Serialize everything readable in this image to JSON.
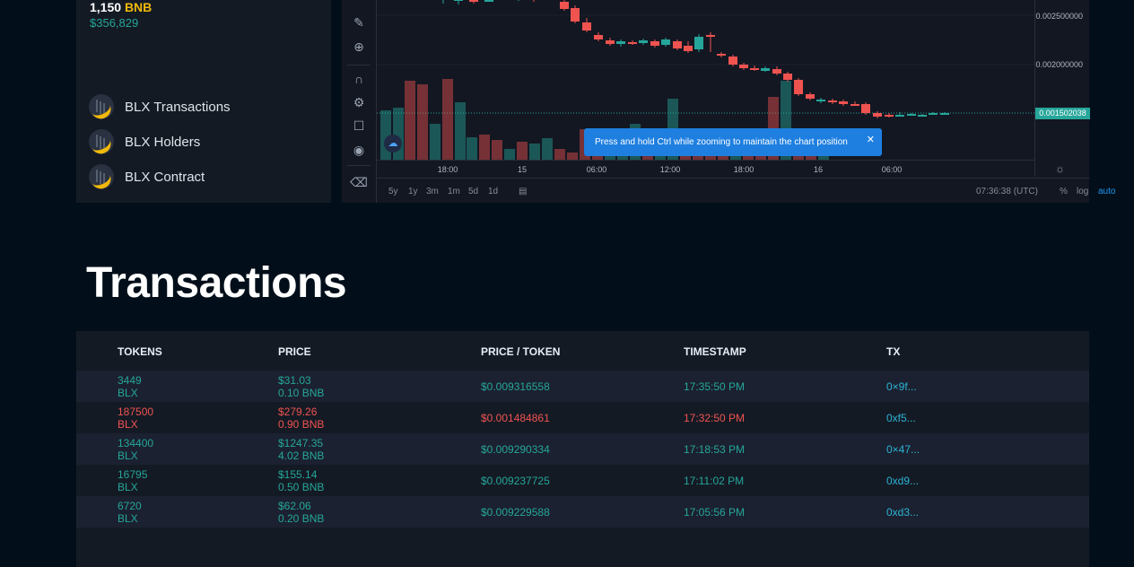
{
  "summary": {
    "bnb_value": "1,150",
    "bnb_unit": "BNB",
    "usd_value": "$356,829"
  },
  "menu": [
    {
      "label": "BLX Transactions"
    },
    {
      "label": "BLX Holders"
    },
    {
      "label": "BLX Contract"
    }
  ],
  "chart": {
    "price_labels": [
      "0.002500000",
      "0.002000000"
    ],
    "current_price": "0.001502038",
    "time_labels": [
      "18:00",
      "15",
      "06:00",
      "12:00",
      "18:00",
      "16",
      "06:00"
    ],
    "range_buttons": [
      "5y",
      "1y",
      "3m",
      "1m",
      "5d",
      "1d"
    ],
    "clock": "07:36:38 (UTC)",
    "scale_buttons": [
      "%",
      "log",
      "auto"
    ],
    "tooltip": "Press and hold Ctrl while zooming to maintain the chart position",
    "colors": {
      "up": "#26a69a",
      "down": "#ef5350"
    }
  },
  "transactions": {
    "title": "Transactions",
    "headers": [
      "TOKENS",
      "PRICE",
      "PRICE / TOKEN",
      "TIMESTAMP",
      "TX"
    ],
    "rows": [
      {
        "tokens": "3449",
        "token_unit": "BLX",
        "price_usd": "$31.03",
        "price_bnb": "0.10 BNB",
        "price_per_token": "$0.009316558",
        "timestamp": "17:35:50 PM",
        "tx": "0×9f...",
        "side": "buy"
      },
      {
        "tokens": "187500",
        "token_unit": "BLX",
        "price_usd": "$279.26",
        "price_bnb": "0.90 BNB",
        "price_per_token": "$0.001484861",
        "timestamp": "17:32:50 PM",
        "tx": "0xf5...",
        "side": "sell"
      },
      {
        "tokens": "134400",
        "token_unit": "BLX",
        "price_usd": "$1247.35",
        "price_bnb": "4.02 BNB",
        "price_per_token": "$0.009290334",
        "timestamp": "17:18:53 PM",
        "tx": "0×47...",
        "side": "buy"
      },
      {
        "tokens": "16795",
        "token_unit": "BLX",
        "price_usd": "$155.14",
        "price_bnb": "0.50 BNB",
        "price_per_token": "$0.009237725",
        "timestamp": "17:11:02 PM",
        "tx": "0xd9...",
        "side": "buy"
      },
      {
        "tokens": "6720",
        "token_unit": "BLX",
        "price_usd": "$62.06",
        "price_bnb": "0.20 BNB",
        "price_per_token": "$0.009229588",
        "timestamp": "17:05:56 PM",
        "tx": "0xd3...",
        "side": "buy"
      }
    ]
  }
}
